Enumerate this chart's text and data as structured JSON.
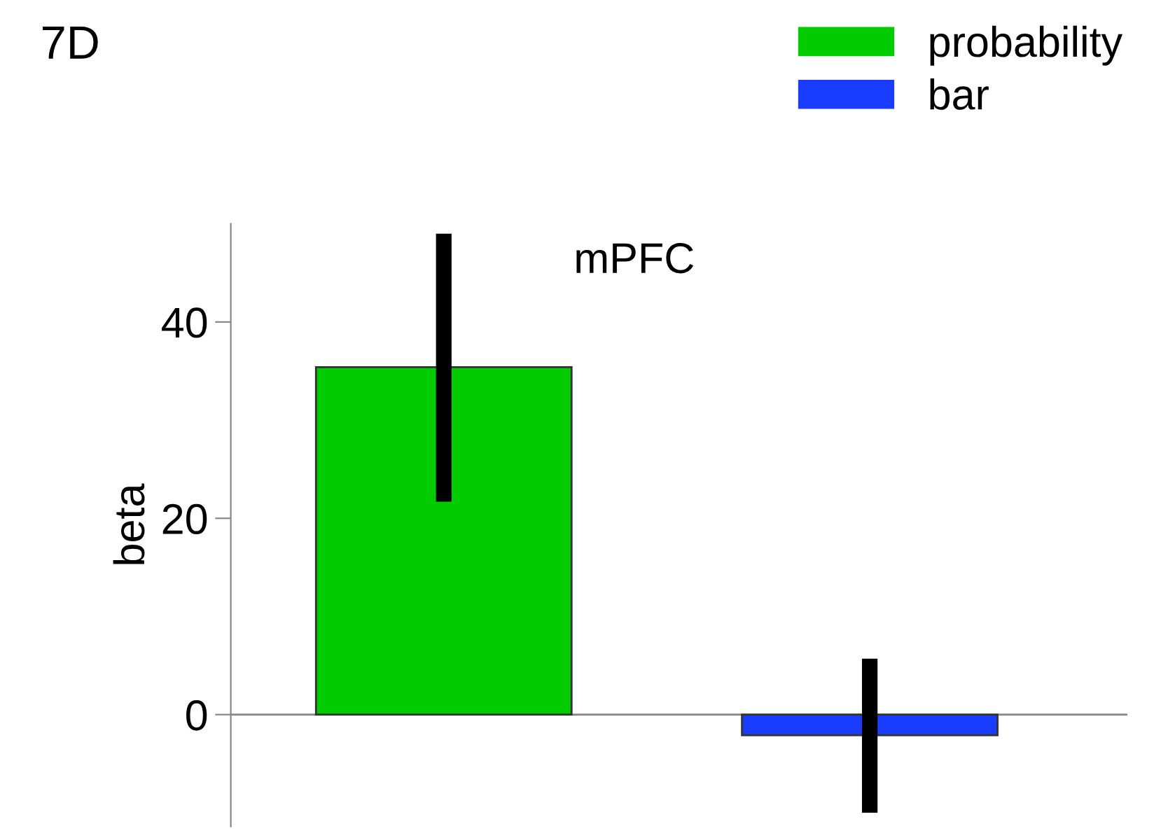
{
  "chart_data": {
    "type": "bar",
    "title": "7D",
    "subtitle": "mPFC",
    "ylabel": "beta",
    "categories": [
      null,
      null
    ],
    "series": [
      {
        "name": "probability",
        "color": "#00cc00",
        "values": [
          35.4,
          null
        ],
        "errors": [
          [
            21.7,
            49.0
          ],
          null
        ]
      },
      {
        "name": "bar",
        "color": "#1a3cff",
        "values": [
          null,
          -2.1
        ],
        "errors": [
          null,
          [
            -10.0,
            5.7
          ]
        ]
      }
    ],
    "ref_lines": [
      {
        "axis": "y",
        "value": 0,
        "color": "#888888"
      }
    ],
    "ylim": [
      -11.4,
      50
    ],
    "yticks": [
      0,
      20,
      40
    ],
    "grid": false,
    "legend": "top right"
  }
}
